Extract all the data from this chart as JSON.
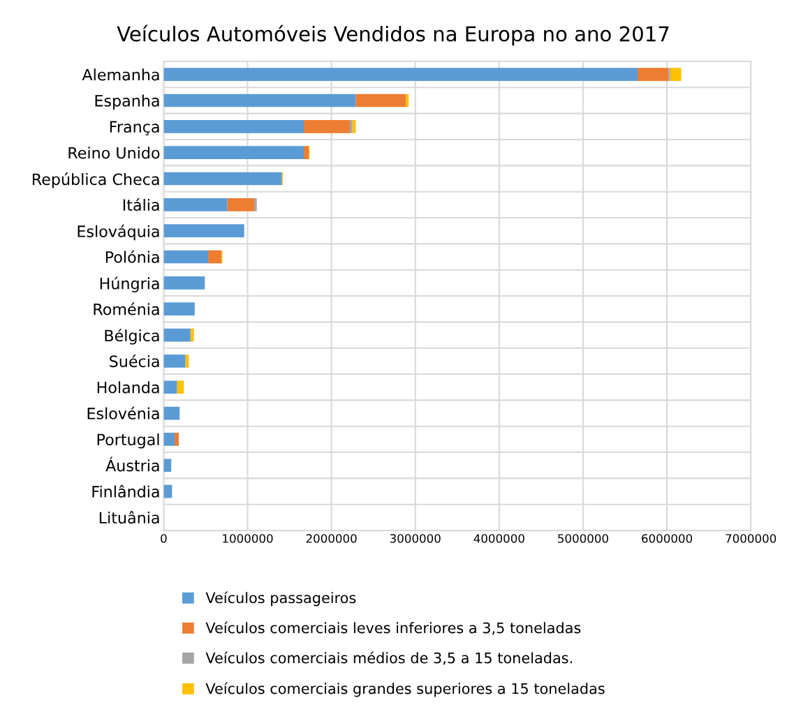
{
  "chart_data": {
    "type": "bar",
    "orientation": "horizontal",
    "stacked": true,
    "title": "Veículos Automóveis Vendidos na Europa no ano 2017",
    "categories": [
      "Alemanha",
      "Espanha",
      "França",
      "Reino Unido",
      "República Checa",
      "Itália",
      "Eslováquia",
      "Polónia",
      "Húngria",
      "Roménia",
      "Bélgica",
      "Suécia",
      "Holanda",
      "Eslovénia",
      "Portugal",
      "Áustria",
      "Finlândia",
      "Lituânia"
    ],
    "series": [
      {
        "name": "Veículos passageiros",
        "color": "#5b9bd5",
        "values": [
          5650000,
          2290000,
          1670000,
          1670000,
          1410000,
          760000,
          960000,
          530000,
          490000,
          370000,
          320000,
          260000,
          160000,
          190000,
          130000,
          90000,
          100000,
          0
        ]
      },
      {
        "name": "Veículos comerciais leves inferiores a 3,5 toneladas",
        "color": "#ed7d31",
        "values": [
          370000,
          600000,
          550000,
          60000,
          0,
          320000,
          0,
          160000,
          0,
          0,
          0,
          0,
          0,
          0,
          50000,
          0,
          0,
          0
        ]
      },
      {
        "name": "Veículos comerciais médios de 3,5 a 15 toneladas.",
        "color": "#a5a5a5",
        "values": [
          20000,
          null,
          30000,
          0,
          null,
          30000,
          0,
          0,
          0,
          0,
          0,
          0,
          0,
          0,
          0,
          0,
          0,
          0
        ]
      },
      {
        "name": "Veículos comerciais grandes superiores a 15 toneladas",
        "color": "#ffc000",
        "values": [
          130000,
          30000,
          40000,
          10000,
          10000,
          0,
          0,
          10000,
          0,
          0,
          40000,
          40000,
          80000,
          0,
          0,
          0,
          0,
          0
        ]
      }
    ],
    "xlim": [
      0,
      7000000
    ],
    "xticks": [
      0,
      1000000,
      2000000,
      3000000,
      4000000,
      5000000,
      6000000,
      7000000
    ],
    "grid": true,
    "legend": "bottom"
  }
}
